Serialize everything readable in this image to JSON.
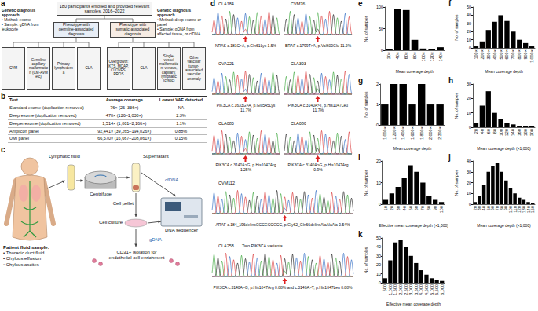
{
  "panel_labels": [
    "a",
    "b",
    "c",
    "d"
  ],
  "flowchart": {
    "top": "180 participants enrolled and provided relevant samples, 2016–2022",
    "germline_approach": [
      "Genetic diagnosis approach",
      "• Method: exome",
      "• Sample: gDNA from leukocyte"
    ],
    "germline_phenotype": "Phenotype with germline-associated diagnosis",
    "somatic_phenotype": "Phenotype with somatic-associated diagnosis",
    "somatic_approach": [
      "Genetic diagnosis approach",
      "• Method: deep exome or panel",
      "• Sample: gDNA from affected tissue, or cfDNA"
    ],
    "germline_diagnoses": [
      "CVM",
      "Germline capillary malformation (CM-AVM etc)",
      "Primary lymphedema",
      "CLA"
    ],
    "somatic_diagnoses": [
      "Overgrowth: KTS, MCAP, CLOVES, PROS",
      "CLA",
      "Single-vessel malformation: venous, capillary, lymphatic (cystic)",
      "Other vascular tumor-associated vascular anomaly"
    ]
  },
  "table": {
    "header": [
      "Test",
      "Average coverage",
      "Lowest VAF detected"
    ],
    "rows": [
      [
        "Standard exome (duplication removed)",
        "76× (26–336×)",
        "NA"
      ],
      [
        "Deep exome (duplication removed)",
        "470× (126–1,030×)",
        "2.3%"
      ],
      [
        "Deeper exome (duplication removed)",
        "1,514× (1,001–2,166×)",
        "1.1%"
      ],
      [
        "Amplicon panel",
        "92,441× (39,265–194,026×)",
        "0.88%"
      ],
      [
        "UMI panel",
        "66,570× (16,667–208,861×)",
        "0.15%"
      ]
    ]
  },
  "workflow": {
    "source": "Lymphatic fluid",
    "sample_title": "Patient fluid sample:",
    "sample_types": [
      "• Thoracic duct fluid",
      "• Chylous effusion",
      "• Chylous ascites"
    ],
    "centrifuge": "Centrifuge",
    "supernatant": "Supernatant",
    "cfdna": "cfDNA",
    "sequencer": "DNA sequencer",
    "pellet": "Cell pellet",
    "culture": "Cell culture",
    "gdna": "gDNA",
    "isolation": "CD31+ isolation for endothelial cell enrichment"
  },
  "chromatograms": [
    {
      "sample": "CLA184",
      "variant": "NRAS c.181C>A, p.Gln61Lys 1.5%"
    },
    {
      "sample": "CVM76",
      "variant": "BRAF c.1799T>A, p.Val600Glu 11.2%"
    },
    {
      "sample": "CVA221",
      "variant": "PIK3CA c.1633G>A, p.Glu545Lys 11.7%"
    },
    {
      "sample": "CLA303",
      "variant": "PIK3CA c.3140A>T, p.His1047Leu 11.7%"
    },
    {
      "sample": "CLA085",
      "variant": "PIK3CA c.3140A>G, p.His1047Arg 1.25%"
    },
    {
      "sample": "CLA086",
      "variant": "PIK3CA c.3140A>G, p.His1047Arg 0.9%"
    },
    {
      "sample": "CVM112",
      "variant": "ARAF c.184_196delinsGCCGCCGCC, p.Gly62_Gln66delinsAlaAlaAla 0.54%"
    },
    {
      "sample": "CLA258",
      "note": "Two PIK3CA variants",
      "variant": "PIK3CA c.3140A>G, p.His1047Arg 0.88% and c.3140A>T, p.His1047Leu 0.88%"
    }
  ],
  "chart_data": [
    {
      "panel": "e",
      "type": "bar",
      "categories": [
        "20×",
        "40×",
        "60×",
        "80×",
        "100×",
        "120×",
        "140×"
      ],
      "values": [
        2,
        95,
        93,
        24,
        4,
        3,
        7
      ],
      "xlabel": "Mean coverage depth",
      "ylabel": "No. of samples",
      "ylim": [
        0,
        100
      ],
      "yticks": [
        0,
        50,
        100
      ],
      "color": "#000000",
      "grid": false
    },
    {
      "panel": "f",
      "type": "bar",
      "categories": [
        "100×",
        "200×",
        "300×",
        "400×",
        "500×",
        "600×",
        "700×",
        "800×",
        "900×",
        "1,000×"
      ],
      "values": [
        2,
        8,
        22,
        32,
        40,
        33,
        20,
        10,
        6,
        2
      ],
      "xlabel": "Mean coverage depth",
      "ylabel": "No. of samples",
      "ylim": [
        0,
        50
      ],
      "yticks": [
        0,
        10,
        20,
        30,
        40,
        50
      ],
      "color": "#000000",
      "grid": false
    },
    {
      "panel": "g",
      "type": "bar",
      "categories": [
        "1,000×",
        "1,200×",
        "1,400×",
        "1,600×",
        "1,800×",
        "2,000×",
        "2,200×"
      ],
      "values": [
        1,
        2,
        2,
        1,
        2,
        1,
        1
      ],
      "xlabel": "Mean coverage depth",
      "ylabel": "No. of samples",
      "ylim": [
        0,
        2
      ],
      "yticks": [
        0,
        1,
        2
      ],
      "color": "#000000",
      "grid": false
    },
    {
      "panel": "h",
      "type": "bar",
      "categories": [
        "20",
        "40",
        "60",
        "80",
        "100",
        "120",
        "140",
        "160",
        "180",
        "200"
      ],
      "values": [
        3,
        15,
        25,
        10,
        6,
        3,
        2,
        1,
        1,
        1
      ],
      "xlabel": "Mean coverage depth (×1,000)",
      "ylabel": "No. of samples",
      "ylim": [
        0,
        30
      ],
      "yticks": [
        0,
        10,
        20,
        30
      ],
      "color": "#000000",
      "grid": false
    },
    {
      "panel": "i",
      "type": "bar",
      "categories": [
        "10",
        "20",
        "30",
        "40",
        "50",
        "60",
        "70",
        "80",
        "90",
        "100"
      ],
      "values": [
        2,
        5,
        8,
        12,
        18,
        15,
        10,
        4,
        2,
        1
      ],
      "xlabel": "Effective mean coverage depth (×1,000)",
      "ylabel": "No. of samples",
      "ylim": [
        0,
        20
      ],
      "yticks": [
        0,
        10,
        20
      ],
      "color": "#000000",
      "grid": false
    },
    {
      "panel": "j",
      "type": "bar",
      "categories": [
        "20",
        "30",
        "40",
        "50",
        "60",
        "70",
        "80",
        "90",
        "100",
        "110",
        "120",
        "130",
        "140",
        "150"
      ],
      "values": [
        2,
        8,
        18,
        30,
        35,
        38,
        30,
        22,
        15,
        10,
        6,
        4,
        2,
        1
      ],
      "xlabel": "Mean coverage depth (×1,000)",
      "ylabel": "No. of samples",
      "ylim": [
        0,
        40
      ],
      "yticks": [
        0,
        10,
        20,
        30,
        40
      ],
      "color": "#000000",
      "grid": false
    },
    {
      "panel": "k",
      "type": "bar",
      "categories": [
        "500",
        "1,000",
        "1,500",
        "2,000",
        "2,500",
        "3,000",
        "3,500",
        "4,000",
        "4,500",
        "5,000",
        "5,500",
        "6,000"
      ],
      "values": [
        5,
        25,
        45,
        48,
        40,
        30,
        22,
        14,
        9,
        5,
        3,
        2
      ],
      "xlabel": "Effective mean coverage depth",
      "ylabel": "No. of samples",
      "ylim": [
        0,
        50
      ],
      "yticks": [
        0,
        10,
        20,
        30,
        40,
        50
      ],
      "color": "#000000",
      "grid": false
    }
  ]
}
